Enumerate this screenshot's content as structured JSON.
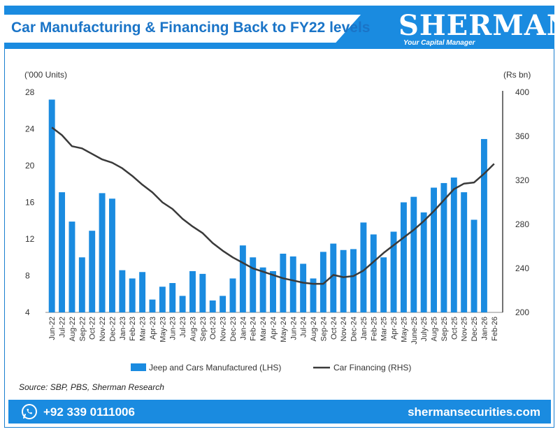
{
  "header": {
    "title": "Car Manufacturing & Financing Back to FY22 levels",
    "brand": "SHERMAN",
    "tagline": "Your Capital Manager"
  },
  "footer": {
    "phone": "+92 339 0111006",
    "website": "shermansecurities.com"
  },
  "source": "Source:  SBP, PBS, Sherman Research",
  "colors": {
    "bar": "#1a8be0",
    "line": "#3a3a3a",
    "brand_blue": "#1a8be0"
  },
  "chart_data": {
    "type": "bar",
    "y_left_label": "('000 Units)",
    "y_right_label": "(Rs bn)",
    "y_left_range": [
      4,
      28
    ],
    "y_left_ticks": [
      4,
      8,
      12,
      16,
      20,
      24,
      28
    ],
    "y_right_range": [
      200,
      400
    ],
    "y_right_ticks": [
      200,
      240,
      280,
      320,
      360,
      400
    ],
    "categories": [
      "Jun-22",
      "Jul-22",
      "Aug-22",
      "Sep-22",
      "Oct-22",
      "Nov-22",
      "Dec-22",
      "Jan-23",
      "Feb-23",
      "Mar-23",
      "Apr-23",
      "May-23",
      "Jun-23",
      "Jul-23",
      "Aug-23",
      "Sep-23",
      "Oct-23",
      "Nov-23",
      "Dec-23",
      "Jan-24",
      "Feb-24",
      "Mar-24",
      "Apr-24",
      "May-24",
      "Jun-24",
      "Jul-24",
      "Aug-24",
      "Sep-24",
      "Oct-24",
      "Nov-24",
      "Dec-24",
      "Jan-25",
      "Feb-25",
      "Mar-25",
      "Apr-25",
      "May-25",
      "June-25",
      "July-25",
      "Aug-25",
      "Sep-25",
      "Oct-25",
      "Nov-25",
      "Dec-25",
      "Jan-26",
      "Feb-26"
    ],
    "series": [
      {
        "name": "Jeep and Cars Manufactured (LHS)",
        "kind": "bar",
        "axis": "left",
        "values": [
          27.2,
          17.1,
          13.9,
          10.0,
          12.9,
          17.0,
          16.4,
          8.6,
          7.7,
          8.4,
          5.4,
          6.8,
          7.2,
          5.8,
          8.5,
          8.2,
          5.3,
          5.8,
          7.7,
          11.3,
          10.0,
          8.9,
          8.5,
          10.4,
          10.1,
          9.3,
          7.7,
          10.6,
          11.5,
          10.8,
          10.9,
          13.8,
          12.5,
          10.0,
          12.8,
          16.0,
          16.6,
          14.9,
          17.6,
          18.1,
          18.7,
          17.1,
          14.1,
          22.9,
          null
        ]
      },
      {
        "name": "Car Financing (RHS)",
        "kind": "line",
        "axis": "right",
        "values": [
          368,
          361,
          351,
          349,
          344,
          339,
          336,
          331,
          324,
          316,
          309,
          300,
          294,
          285,
          278,
          272,
          263,
          256,
          250,
          245,
          240,
          237,
          234,
          231,
          229,
          227,
          226,
          226,
          234,
          232,
          233,
          238,
          246,
          254,
          261,
          268,
          275,
          283,
          292,
          302,
          312,
          317,
          318,
          326,
          335
        ]
      }
    ],
    "legend_position": "bottom",
    "grid": false
  }
}
